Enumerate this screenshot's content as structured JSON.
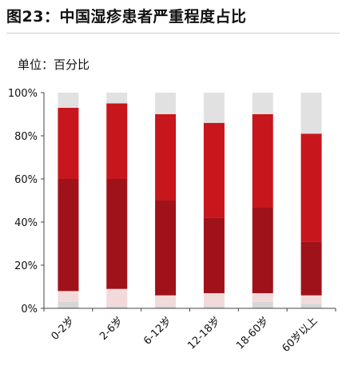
{
  "header": {
    "title": "图23：中国湿疹患者严重程度占比",
    "unit": "单位：百分比"
  },
  "chart_data": {
    "type": "bar",
    "stacked": true,
    "categories": [
      "0-2岁",
      "2-6岁",
      "6-12岁",
      "12-18岁",
      "18-60岁",
      "60岁以上"
    ],
    "y_ticks": [
      "0%",
      "20%",
      "40%",
      "60%",
      "80%",
      "100%"
    ],
    "ylim": [
      0,
      100
    ],
    "grid": false,
    "legend": "none",
    "series": [
      {
        "color": "#d6d6d6",
        "values": [
          3,
          1,
          1,
          1,
          3,
          2
        ]
      },
      {
        "color": "#f2dada",
        "values": [
          5,
          8,
          5,
          6,
          4,
          4
        ]
      },
      {
        "color": "#a0121a",
        "values": [
          52,
          51,
          44,
          35,
          40,
          25
        ]
      },
      {
        "color": "#c8161d",
        "values": [
          33,
          35,
          40,
          44,
          43,
          50
        ]
      },
      {
        "color": "#e1e1e1",
        "values": [
          7,
          5,
          10,
          14,
          10,
          19
        ]
      }
    ]
  }
}
